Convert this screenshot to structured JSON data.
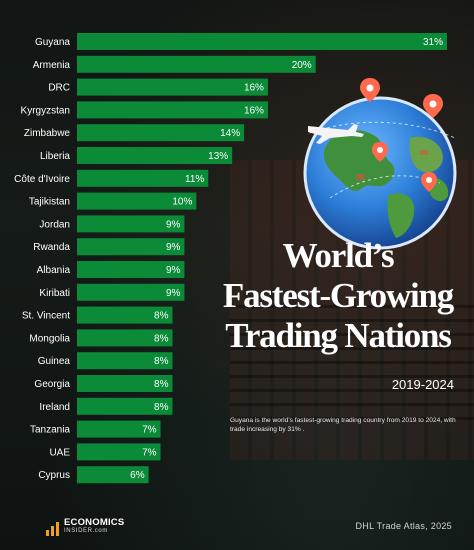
{
  "chart_data": {
    "type": "bar",
    "orientation": "horizontal",
    "categories": [
      "Guyana",
      "Armenia",
      "DRC",
      "Kyrgyzstan",
      "Zimbabwe",
      "Liberia",
      "Côte d'Ivoire",
      "Tajikistan",
      "Jordan",
      "Rwanda",
      "Albania",
      "Kiribati",
      "St. Vincent",
      "Mongolia",
      "Guinea",
      "Georgia",
      "Ireland",
      "Tanzania",
      "UAE",
      "Cyprus"
    ],
    "values": [
      31,
      20,
      16,
      16,
      14,
      13,
      11,
      10,
      9,
      9,
      9,
      9,
      8,
      8,
      8,
      8,
      8,
      7,
      7,
      6
    ],
    "value_labels": [
      "31%",
      "20%",
      "16%",
      "16%",
      "14%",
      "13%",
      "11%",
      "10%",
      "9%",
      "9%",
      "9%",
      "9%",
      "8%",
      "8%",
      "8%",
      "8%",
      "8%",
      "7%",
      "7%",
      "6%"
    ],
    "xlim": [
      0,
      31
    ],
    "grid": false,
    "bar_color": "#0b8a37"
  },
  "title": {
    "line1": "World’s",
    "line2": "Fastest-Growing",
    "line3": "Trading Nations"
  },
  "subtitle": "2019-2024",
  "description": "Guyana is the world’s fastest-growing trading country from 2019 to 2024, with trade increasing by 31% .",
  "source": "DHL Trade Atlas, 2025",
  "logo": {
    "line1": "ECONOMICS",
    "line2": "INSIDER.com"
  },
  "colors": {
    "bar": "#0b8a37",
    "background": "#111614",
    "text": "#ffffff"
  }
}
